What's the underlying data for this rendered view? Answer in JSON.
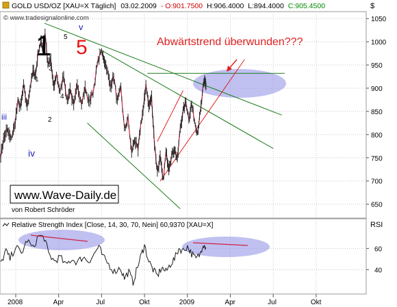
{
  "header": {
    "title": "GOLD USD/OZ [XAU=X  Täglich] 03.02.2009 - O:901.7500 H:906.4000 L:894.4000 C:905.4500",
    "title_parts": [
      "GOLD USD/OZ [XAU=X  Täglich]",
      "03.02.2009",
      "- O:901.7500",
      "H:906.4000",
      "L:894.4000",
      "C:905.4500"
    ],
    "website": "© www.tradesignalonline.com",
    "currency_label": "$"
  },
  "annotations": {
    "wave1": "1",
    "wave5": "5",
    "wave_v": "v",
    "small_5": "5",
    "small_4": "4",
    "small_3": "3",
    "small_2": "2",
    "small_1": "1",
    "wave_iii": "iii",
    "wave_iv": "iv",
    "trend_text": "Abwärtstrend überwunden???",
    "watermark": "www.Wave-Daily.de",
    "author": "von Robert Schröder"
  },
  "colors": {
    "price": "#2a2a2a",
    "price_up": "#cc2244",
    "trend_green": "#1a7a1a",
    "trend_red": "#e02020",
    "ellipse": "#8c8ce6",
    "rsi": "#1a1a1a",
    "roman": "#2222bb",
    "grid": "#c8c8c8"
  },
  "chart_data": [
    {
      "type": "line",
      "title": "GOLD USD/OZ [XAU=X  Täglich]",
      "ylabel": "$",
      "ylim": [
        620,
        1065
      ],
      "yticks": [
        650,
        700,
        750,
        800,
        850,
        900,
        950,
        1000,
        1050
      ],
      "x_ticks": [
        "2008",
        "Apr",
        "Jul",
        "Okt",
        "2009",
        "Apr",
        "Jul",
        "Okt"
      ],
      "x_tick_months": [
        0,
        3,
        6,
        9,
        12,
        15,
        18,
        21
      ],
      "x_start_month": -1.1,
      "x_end_month": 24.5,
      "series": [
        {
          "name": "",
          "points": [
            [
              -1.05,
              755
            ],
            [
              -0.85,
              790
            ],
            [
              -0.6,
              810
            ],
            [
              -0.35,
              790
            ],
            [
              -0.1,
              815
            ],
            [
              0.15,
              870
            ],
            [
              0.35,
              860
            ],
            [
              0.55,
              905
            ],
            [
              0.8,
              860
            ],
            [
              1.0,
              900
            ],
            [
              1.2,
              935
            ],
            [
              1.4,
              930
            ],
            [
              1.55,
              975
            ],
            [
              1.75,
              1000
            ],
            [
              1.9,
              985
            ],
            [
              2.05,
              1020
            ],
            [
              2.25,
              950
            ],
            [
              2.45,
              960
            ],
            [
              2.65,
              900
            ],
            [
              2.85,
              930
            ],
            [
              3.1,
              890
            ],
            [
              3.35,
              930
            ],
            [
              3.6,
              870
            ],
            [
              3.8,
              900
            ],
            [
              4.05,
              860
            ],
            [
              4.3,
              905
            ],
            [
              4.6,
              870
            ],
            [
              4.85,
              900
            ],
            [
              5.1,
              870
            ],
            [
              5.4,
              890
            ],
            [
              5.7,
              950
            ],
            [
              5.95,
              980
            ],
            [
              6.15,
              965
            ],
            [
              6.35,
              945
            ],
            [
              6.6,
              905
            ],
            [
              6.85,
              925
            ],
            [
              7.1,
              870
            ],
            [
              7.35,
              900
            ],
            [
              7.6,
              810
            ],
            [
              7.85,
              835
            ],
            [
              8.1,
              760
            ],
            [
              8.3,
              790
            ],
            [
              8.55,
              765
            ],
            [
              8.75,
              825
            ],
            [
              8.95,
              860
            ],
            [
              9.1,
              910
            ],
            [
              9.3,
              860
            ],
            [
              9.5,
              880
            ],
            [
              9.7,
              780
            ],
            [
              9.9,
              720
            ],
            [
              10.1,
              750
            ],
            [
              10.3,
              700
            ],
            [
              10.5,
              760
            ],
            [
              10.7,
              730
            ],
            [
              10.9,
              755
            ],
            [
              11.1,
              770
            ],
            [
              11.3,
              745
            ],
            [
              11.5,
              815
            ],
            [
              11.7,
              850
            ],
            [
              11.9,
              870
            ],
            [
              12.1,
              835
            ],
            [
              12.3,
              865
            ],
            [
              12.5,
              830
            ],
            [
              12.7,
              805
            ],
            [
              12.9,
              845
            ],
            [
              13.1,
              900
            ],
            [
              13.2,
              920
            ],
            [
              13.3,
              905
            ]
          ]
        }
      ],
      "trendlines": [
        {
          "color": "green",
          "from": [
            2.0,
            1040
          ],
          "to": [
            18.6,
            842
          ]
        },
        {
          "color": "green",
          "from": [
            5.8,
            985
          ],
          "to": [
            18.0,
            770
          ]
        },
        {
          "color": "green",
          "from": [
            9.2,
            932
          ],
          "to": [
            18.8,
            932
          ]
        },
        {
          "color": "green",
          "from": [
            5.0,
            825
          ],
          "to": [
            11.5,
            640
          ]
        },
        {
          "color": "red",
          "from": [
            10.1,
            700
          ],
          "to": [
            16.0,
            962
          ]
        },
        {
          "color": "red",
          "from": [
            9.9,
            785
          ],
          "to": [
            11.7,
            895
          ]
        }
      ]
    },
    {
      "type": "line",
      "title": "Relative Strength Index [Close, 14, 30, 70, Nein] 60,9370 [XAU=X]",
      "ylabel": "RSI",
      "yticks": [
        40,
        60
      ],
      "ylim": [
        17,
        88
      ],
      "series": [
        {
          "name": "",
          "points": [
            [
              -1.05,
              45
            ],
            [
              -0.7,
              58
            ],
            [
              -0.4,
              50
            ],
            [
              0.0,
              62
            ],
            [
              0.4,
              55
            ],
            [
              0.8,
              68
            ],
            [
              1.2,
              60
            ],
            [
              1.6,
              72
            ],
            [
              2.0,
              70
            ],
            [
              2.3,
              55
            ],
            [
              2.7,
              48
            ],
            [
              3.1,
              52
            ],
            [
              3.5,
              44
            ],
            [
              3.9,
              50
            ],
            [
              4.3,
              47
            ],
            [
              4.7,
              52
            ],
            [
              5.1,
              48
            ],
            [
              5.5,
              55
            ],
            [
              5.8,
              62
            ],
            [
              6.1,
              52
            ],
            [
              6.5,
              45
            ],
            [
              6.9,
              38
            ],
            [
              7.3,
              42
            ],
            [
              7.6,
              32
            ],
            [
              7.9,
              38
            ],
            [
              8.2,
              28
            ],
            [
              8.5,
              42
            ],
            [
              8.8,
              55
            ],
            [
              9.0,
              63
            ],
            [
              9.3,
              48
            ],
            [
              9.6,
              40
            ],
            [
              9.9,
              34
            ],
            [
              10.2,
              42
            ],
            [
              10.5,
              38
            ],
            [
              10.8,
              45
            ],
            [
              11.1,
              50
            ],
            [
              11.4,
              60
            ],
            [
              11.7,
              58
            ],
            [
              12.0,
              62
            ],
            [
              12.3,
              55
            ],
            [
              12.6,
              50
            ],
            [
              12.9,
              55
            ],
            [
              13.1,
              65
            ],
            [
              13.3,
              61
            ]
          ]
        }
      ]
    }
  ]
}
